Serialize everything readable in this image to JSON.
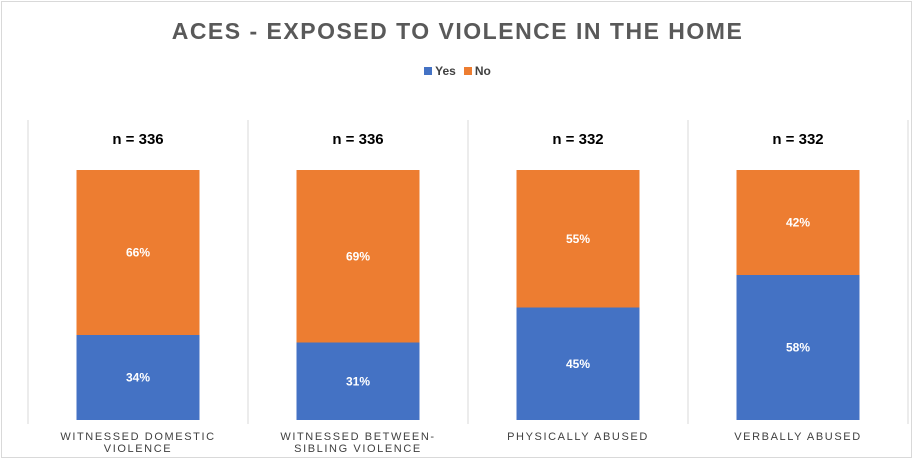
{
  "chart_data": {
    "type": "bar",
    "stacked": true,
    "percent_stacked": true,
    "title": "ACES - EXPOSED TO VIOLENCE IN THE HOME",
    "legend_position": "top",
    "categories": [
      [
        "WITNESSED DOMESTIC",
        "VIOLENCE"
      ],
      [
        "WITNESSED BETWEEN-",
        "SIBLING VIOLENCE"
      ],
      [
        "PHYSICALLY ABUSED"
      ],
      [
        "VERBALLY ABUSED"
      ]
    ],
    "n_labels": [
      "n = 336",
      "n = 336",
      "n = 332",
      "n = 332"
    ],
    "series": [
      {
        "name": "Yes",
        "color": "#4472C4",
        "values": [
          34,
          31,
          45,
          58
        ],
        "labels": [
          "34%",
          "31%",
          "45%",
          "58%"
        ]
      },
      {
        "name": "No",
        "color": "#ED7D31",
        "values": [
          66,
          69,
          55,
          42
        ],
        "labels": [
          "66%",
          "69%",
          "55%",
          "42%"
        ]
      }
    ],
    "ylim": [
      0,
      100
    ],
    "grid": false
  }
}
